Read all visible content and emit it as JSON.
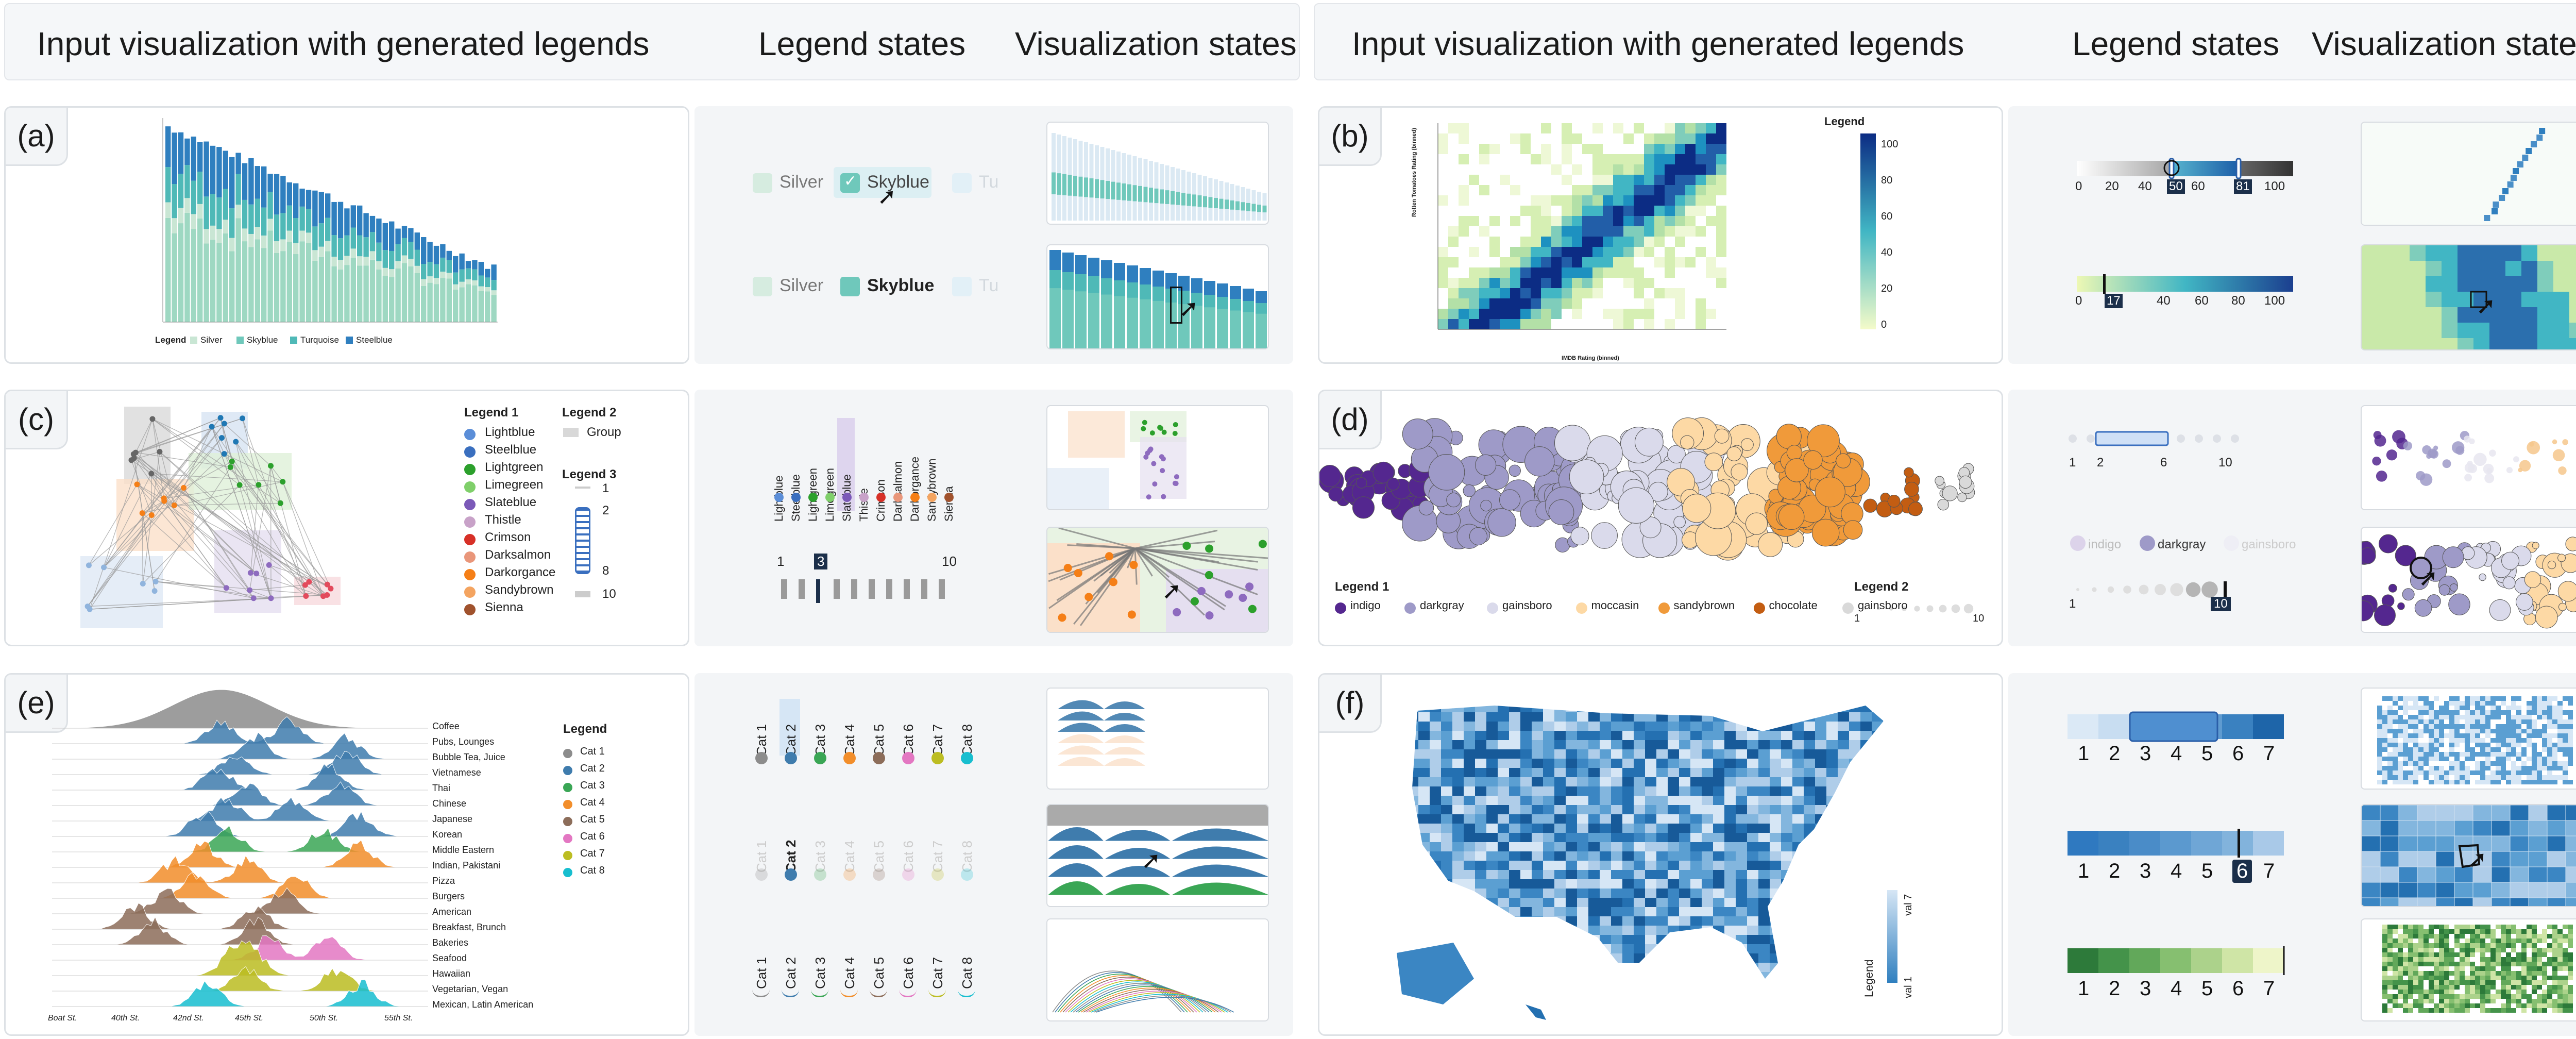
{
  "header": {
    "left_title": "Input visualization with generated legends",
    "left_legend_states": "Legend states",
    "left_vis_states": "Visualization states",
    "right_title": "Input visualization with generated legends",
    "right_legend_states": "Legend states",
    "right_vis_states": "Visualization states"
  },
  "panels": {
    "a": {
      "label": "(a)",
      "legend_title": "Legend",
      "legend_items": [
        "Silver",
        "Skyblue",
        "Turquoise",
        "Steelblue"
      ],
      "state_items": [
        "Silver",
        "Skyblue",
        "Tu"
      ]
    },
    "b": {
      "label": "(b)",
      "legend_title": "Legend",
      "colorbar_ticks": [
        "100",
        "80",
        "60",
        "40",
        "20",
        "0"
      ],
      "xlabel": "IMDB Rating (binned)",
      "ylabel": "Rotten Tomatoes Rating (binned)",
      "slider1_ticks": [
        "0",
        "20",
        "40",
        "60",
        "80",
        "100"
      ],
      "slider1_sel_low": "50",
      "slider1_sel_high": "81",
      "slider2_ticks": [
        "0",
        "17",
        "40",
        "60",
        "80",
        "100"
      ],
      "slider2_sel": "17"
    },
    "c": {
      "label": "(c)",
      "legend1_title": "Legend 1",
      "legend2_title": "Legend 2",
      "legend3_title": "Legend 3",
      "legend1_items": [
        "Lightblue",
        "Steelblue",
        "Lightgreen",
        "Limegreen",
        "Slateblue",
        "Thistle",
        "Crimson",
        "Darksalmon",
        "Darkorgance",
        "Sandybrown",
        "Sienna"
      ],
      "legend2_item": "Group",
      "legend3_ticks": [
        "1",
        "2",
        "8",
        "10"
      ],
      "state_items": [
        "Lightblue",
        "Steelblue",
        "Lightgreen",
        "Limegreen",
        "Slateblue",
        "Thistle",
        "Crimson",
        "Darksalmon",
        "Darkorgance",
        "Sandybrown",
        "Sienna"
      ],
      "state_range": [
        "1",
        "3",
        "10"
      ]
    },
    "d": {
      "label": "(d)",
      "legend1_title": "Legend 1",
      "legend2_title": "Legend 2",
      "legend1_items": [
        "indigo",
        "darkgray",
        "gainsboro",
        "moccasin",
        "sandybrown",
        "chocolate",
        "gainsboro"
      ],
      "legend2_ticks": [
        "1",
        "10"
      ],
      "state1_ticks": [
        "1",
        "2",
        "6",
        "10"
      ],
      "state2_items": [
        "indigo",
        "darkgray",
        "gainsboro"
      ],
      "state3_ticks": [
        "1",
        "10"
      ]
    },
    "e": {
      "label": "(e)",
      "legend_title": "Legend",
      "legend_items": [
        "Cat 1",
        "Cat 2",
        "Cat 3",
        "Cat 4",
        "Cat 5",
        "Cat 6",
        "Cat 7",
        "Cat 8"
      ],
      "ridge_labels": [
        "Coffee",
        "Pubs, Lounges",
        "Bubble Tea, Juice",
        "Vietnamese",
        "Thai",
        "Chinese",
        "Japanese",
        "Korean",
        "Middle Eastern",
        "Indian, Pakistani",
        "Pizza",
        "Burgers",
        "American",
        "Breakfast, Brunch",
        "Bakeries",
        "Seafood",
        "Hawaiian",
        "Vegetarian, Vegan",
        "Mexican, Latin American"
      ],
      "x_ticks": [
        "Boat St.",
        "40th St.",
        "42nd St.",
        "45th St.",
        "50th St.",
        "55th St."
      ]
    },
    "f": {
      "label": "(f)",
      "legend_title": "Legend",
      "legend_top": "val 7",
      "legend_bottom": "val 1",
      "scale_ticks": [
        "1",
        "2",
        "3",
        "4",
        "5",
        "6",
        "7"
      ],
      "selected_tick": "6"
    }
  },
  "colors": {
    "silver": "#c9e6d4",
    "skyblue": "#6fc8bb",
    "turquoise": "#4fb9b7",
    "steelblue": "#2f7fbf"
  }
}
